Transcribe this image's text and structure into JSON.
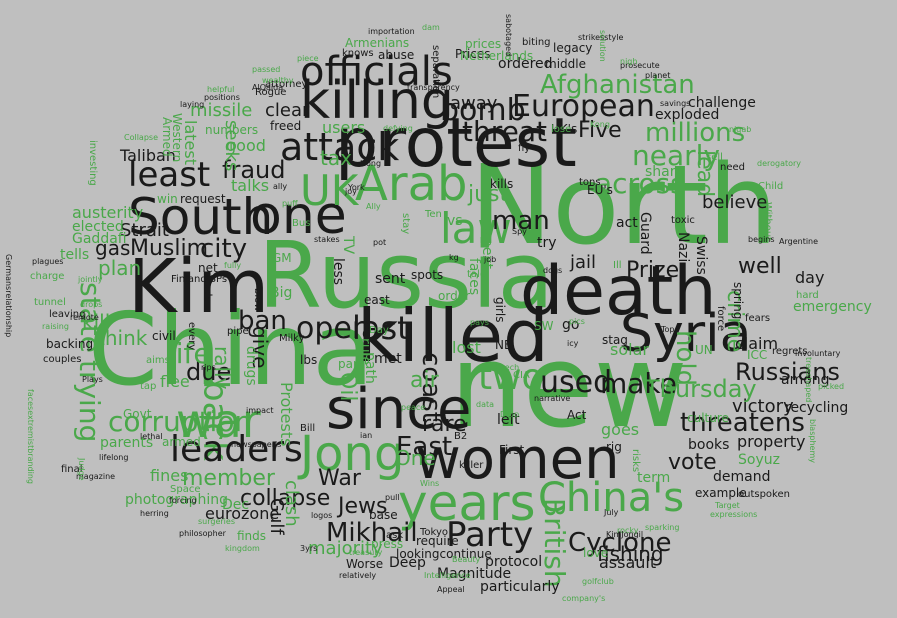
{
  "colors": {
    "background": "#bfbfbf",
    "dark": "#1a1a1a",
    "green": "#4aa84a"
  },
  "words": [
    {
      "text": "North",
      "color": "green"
    },
    {
      "text": "China",
      "color": "green"
    },
    {
      "text": "Russia",
      "color": "green"
    },
    {
      "text": "new",
      "color": "green"
    },
    {
      "text": "protest",
      "color": "dark"
    },
    {
      "text": "killed",
      "color": "dark"
    },
    {
      "text": "death",
      "color": "dark"
    },
    {
      "text": "Kim",
      "color": "dark"
    },
    {
      "text": "killing",
      "color": "dark"
    },
    {
      "text": "South",
      "color": "dark"
    },
    {
      "text": "women",
      "color": "dark"
    },
    {
      "text": "years",
      "color": "green"
    },
    {
      "text": "one",
      "color": "dark"
    },
    {
      "text": "since",
      "color": "dark"
    },
    {
      "text": "Syria",
      "color": "dark"
    },
    {
      "text": "officials",
      "color": "dark"
    },
    {
      "text": "war",
      "color": "green"
    },
    {
      "text": "Jong",
      "color": "green"
    },
    {
      "text": "UK",
      "color": "green"
    },
    {
      "text": "Arab",
      "color": "green"
    },
    {
      "text": "attack",
      "color": "dark"
    },
    {
      "text": "China's",
      "color": "green"
    },
    {
      "text": "bomb",
      "color": "dark"
    },
    {
      "text": "European",
      "color": "dark"
    },
    {
      "text": "least",
      "color": "dark"
    },
    {
      "text": "last",
      "color": "dark"
    },
    {
      "text": "law",
      "color": "green"
    },
    {
      "text": "two",
      "color": "green"
    },
    {
      "text": "back",
      "color": "green"
    },
    {
      "text": "leaders",
      "color": "dark"
    },
    {
      "text": "used",
      "color": "dark"
    },
    {
      "text": "make",
      "color": "dark"
    },
    {
      "text": "Party",
      "color": "dark"
    },
    {
      "text": "open",
      "color": "dark"
    },
    {
      "text": "corruption",
      "color": "green"
    },
    {
      "text": "Afghanistan",
      "color": "green"
    },
    {
      "text": "threat",
      "color": "dark"
    },
    {
      "text": "city",
      "color": "dark"
    },
    {
      "text": "nearly",
      "color": "green"
    },
    {
      "text": "Russians",
      "color": "dark"
    },
    {
      "text": "fraud",
      "color": "dark"
    },
    {
      "text": "threatens",
      "color": "dark"
    },
    {
      "text": "millions",
      "color": "green"
    },
    {
      "text": "across",
      "color": "green"
    },
    {
      "text": "state",
      "color": "green"
    },
    {
      "text": "Mikhail",
      "color": "dark"
    },
    {
      "text": "East",
      "color": "dark"
    },
    {
      "text": "Cyclone",
      "color": "dark"
    },
    {
      "text": "man",
      "color": "dark"
    },
    {
      "text": "Muslim",
      "color": "dark"
    },
    {
      "text": "Thursday",
      "color": "green"
    },
    {
      "text": "Prize",
      "color": "dark"
    },
    {
      "text": "victory",
      "color": "dark"
    },
    {
      "text": "vote",
      "color": "dark"
    },
    {
      "text": "member",
      "color": "green"
    },
    {
      "text": "collapse",
      "color": "dark"
    },
    {
      "text": "fishing",
      "color": "dark"
    },
    {
      "text": "British",
      "color": "green"
    },
    {
      "text": "trying",
      "color": "green"
    },
    {
      "text": "majority",
      "color": "green"
    },
    {
      "text": "coast",
      "color": "dark"
    },
    {
      "text": "ban",
      "color": "dark"
    },
    {
      "text": "due",
      "color": "dark"
    },
    {
      "text": "life",
      "color": "green"
    },
    {
      "text": "Five",
      "color": "dark"
    },
    {
      "text": "crime",
      "color": "green"
    },
    {
      "text": "hold",
      "color": "green"
    },
    {
      "text": "War",
      "color": "dark"
    },
    {
      "text": "Jews",
      "color": "dark"
    },
    {
      "text": "rare",
      "color": "dark"
    },
    {
      "text": "One",
      "color": "green"
    },
    {
      "text": "plan",
      "color": "green"
    },
    {
      "text": "kill",
      "color": "green"
    },
    {
      "text": "well",
      "color": "dark"
    },
    {
      "text": "lead",
      "color": "green"
    },
    {
      "text": "give",
      "color": "dark"
    },
    {
      "text": "gas",
      "color": "dark"
    },
    {
      "text": "tax",
      "color": "green"
    },
    {
      "text": "think",
      "color": "green"
    },
    {
      "text": "rally",
      "color": "green"
    },
    {
      "text": "just",
      "color": "green"
    },
    {
      "text": "air",
      "color": "green"
    },
    {
      "text": "Oil",
      "color": "green"
    },
    {
      "text": "users",
      "color": "green"
    },
    {
      "text": "missile",
      "color": "green"
    },
    {
      "text": "clear",
      "color": "dark"
    },
    {
      "text": "talks",
      "color": "green"
    },
    {
      "text": "Taliban",
      "color": "dark"
    },
    {
      "text": "away",
      "color": "dark"
    },
    {
      "text": "jail",
      "color": "dark"
    },
    {
      "text": "believe",
      "color": "dark"
    },
    {
      "text": "seeks",
      "color": "green"
    },
    {
      "text": "good",
      "color": "green"
    },
    {
      "text": "latest",
      "color": "green"
    },
    {
      "text": "demand",
      "color": "dark"
    },
    {
      "text": "property",
      "color": "dark"
    },
    {
      "text": "books",
      "color": "dark"
    },
    {
      "text": "fines",
      "color": "green"
    },
    {
      "text": "austerity",
      "color": "green"
    },
    {
      "text": "eurozone",
      "color": "dark"
    },
    {
      "text": "photographing",
      "color": "green"
    },
    {
      "text": "recycling",
      "color": "dark"
    },
    {
      "text": "among",
      "color": "dark"
    },
    {
      "text": "goes",
      "color": "green"
    },
    {
      "text": "solar",
      "color": "green"
    },
    {
      "text": "assault",
      "color": "dark"
    },
    {
      "text": "Gulf",
      "color": "dark"
    },
    {
      "text": "clash",
      "color": "green"
    },
    {
      "text": "Strait",
      "color": "dark"
    },
    {
      "text": "Protests",
      "color": "green"
    },
    {
      "text": "flee",
      "color": "green"
    },
    {
      "text": "Gaddafi",
      "color": "green"
    },
    {
      "text": "elected",
      "color": "green"
    },
    {
      "text": "parents",
      "color": "green"
    },
    {
      "text": "emergency",
      "color": "green"
    },
    {
      "text": "claim",
      "color": "dark"
    },
    {
      "text": "day",
      "color": "dark"
    },
    {
      "text": "lost",
      "color": "green"
    },
    {
      "text": "protocol",
      "color": "dark"
    },
    {
      "text": "particularly",
      "color": "dark"
    },
    {
      "text": "Magnitude",
      "color": "dark"
    },
    {
      "text": "lookingcontinue",
      "color": "dark"
    },
    {
      "text": "Deep",
      "color": "dark"
    },
    {
      "text": "Worse",
      "color": "dark"
    },
    {
      "text": "require",
      "color": "dark"
    },
    {
      "text": "culture",
      "color": "green"
    },
    {
      "text": "example",
      "color": "dark"
    },
    {
      "text": "term",
      "color": "green"
    },
    {
      "text": "Soyuz",
      "color": "green"
    },
    {
      "text": "outspoken",
      "color": "dark"
    },
    {
      "text": "challenge",
      "color": "dark"
    },
    {
      "text": "exploded",
      "color": "dark"
    },
    {
      "text": "share",
      "color": "green"
    },
    {
      "text": "legacy",
      "color": "dark"
    },
    {
      "text": "ordered",
      "color": "dark"
    },
    {
      "text": "middle",
      "color": "dark"
    },
    {
      "text": "Prices",
      "color": "dark"
    },
    {
      "text": "prices",
      "color": "green"
    },
    {
      "text": "Netherlands",
      "color": "green"
    },
    {
      "text": "Armenians",
      "color": "green"
    },
    {
      "text": "knows",
      "color": "dark"
    },
    {
      "text": "abuse",
      "color": "dark"
    },
    {
      "text": "biting",
      "color": "dark"
    },
    {
      "text": "separation",
      "color": "dark"
    },
    {
      "text": "importation",
      "color": "dark"
    },
    {
      "text": "strikesstyle",
      "color": "dark"
    },
    {
      "text": "prosecute",
      "color": "dark"
    },
    {
      "text": "planet",
      "color": "dark"
    },
    {
      "text": "savings",
      "color": "dark"
    },
    {
      "text": "transparency",
      "color": "dark"
    },
    {
      "text": "attorney",
      "color": "dark"
    },
    {
      "text": "AlQaida",
      "color": "dark"
    },
    {
      "text": "positions",
      "color": "dark"
    },
    {
      "text": "laying",
      "color": "dark"
    },
    {
      "text": "freed",
      "color": "dark"
    },
    {
      "text": "Rogue",
      "color": "dark"
    },
    {
      "text": "numbers",
      "color": "green"
    },
    {
      "text": "Dec",
      "color": "green"
    },
    {
      "text": "request",
      "color": "dark"
    },
    {
      "text": "win",
      "color": "green"
    },
    {
      "text": "ally",
      "color": "dark"
    },
    {
      "text": "plagues",
      "color": "dark"
    },
    {
      "text": "tells",
      "color": "green"
    },
    {
      "text": "charge",
      "color": "green"
    },
    {
      "text": "tunnel",
      "color": "green"
    },
    {
      "text": "raising",
      "color": "green"
    },
    {
      "text": "backing",
      "color": "dark"
    },
    {
      "text": "couples",
      "color": "dark"
    },
    {
      "text": "leaving",
      "color": "dark"
    },
    {
      "text": "remote",
      "color": "dark"
    },
    {
      "text": "final",
      "color": "dark"
    },
    {
      "text": "magazine",
      "color": "dark"
    },
    {
      "text": "lifelong",
      "color": "dark"
    },
    {
      "text": "herring",
      "color": "dark"
    },
    {
      "text": "philosopher",
      "color": "dark"
    },
    {
      "text": "kingdom",
      "color": "green"
    },
    {
      "text": "surgeries",
      "color": "green"
    },
    {
      "text": "finds",
      "color": "green"
    },
    {
      "text": "Space",
      "color": "green"
    },
    {
      "text": "armed",
      "color": "green"
    },
    {
      "text": "forcing",
      "color": "dark"
    },
    {
      "text": "newspaper's",
      "color": "dark"
    },
    {
      "text": "Bill",
      "color": "dark"
    },
    {
      "text": "lbs",
      "color": "dark"
    },
    {
      "text": "met",
      "color": "dark"
    },
    {
      "text": "Milky",
      "color": "dark"
    },
    {
      "text": "pipe",
      "color": "dark"
    },
    {
      "text": "civil",
      "color": "dark"
    },
    {
      "text": "net",
      "color": "dark"
    },
    {
      "text": "every",
      "color": "dark"
    },
    {
      "text": "leads",
      "color": "dark"
    },
    {
      "text": "blow",
      "color": "dark"
    },
    {
      "text": "drugs",
      "color": "green"
    },
    {
      "text": "Big",
      "color": "green"
    },
    {
      "text": "GM",
      "color": "green"
    },
    {
      "text": "TV",
      "color": "green"
    },
    {
      "text": "less",
      "color": "dark"
    },
    {
      "text": "sent",
      "color": "dark"
    },
    {
      "text": "east",
      "color": "dark"
    },
    {
      "text": "spots",
      "color": "dark"
    },
    {
      "text": "order",
      "color": "green"
    },
    {
      "text": "path",
      "color": "green"
    },
    {
      "text": "rule",
      "color": "green"
    },
    {
      "text": "park",
      "color": "green"
    },
    {
      "text": "try",
      "color": "dark"
    },
    {
      "text": "vs",
      "color": "green"
    },
    {
      "text": "faces",
      "color": "green"
    },
    {
      "text": "Guard",
      "color": "dark"
    },
    {
      "text": "act",
      "color": "dark"
    },
    {
      "text": "Nazi",
      "color": "dark"
    },
    {
      "text": "Swiss",
      "color": "dark"
    },
    {
      "text": "spring",
      "color": "dark"
    },
    {
      "text": "force",
      "color": "dark"
    },
    {
      "text": "regrets",
      "color": "dark"
    },
    {
      "text": "fears",
      "color": "dark"
    },
    {
      "text": "UN",
      "color": "green"
    },
    {
      "text": "ICC",
      "color": "green"
    },
    {
      "text": "hard",
      "color": "green"
    },
    {
      "text": "Child",
      "color": "green"
    },
    {
      "text": "need",
      "color": "dark"
    },
    {
      "text": "fly",
      "color": "dark"
    },
    {
      "text": "tons",
      "color": "dark"
    },
    {
      "text": "kills",
      "color": "dark"
    },
    {
      "text": "UK's",
      "color": "dark"
    },
    {
      "text": "lose",
      "color": "green"
    },
    {
      "text": "EU's",
      "color": "dark"
    },
    {
      "text": "next",
      "color": "green"
    },
    {
      "text": "go",
      "color": "dark"
    },
    {
      "text": "SW",
      "color": "green"
    },
    {
      "text": "girls",
      "color": "dark"
    },
    {
      "text": "NE",
      "color": "dark"
    },
    {
      "text": "First",
      "color": "dark"
    },
    {
      "text": "left",
      "color": "dark"
    },
    {
      "text": "Act",
      "color": "dark"
    },
    {
      "text": "killer",
      "color": "dark"
    },
    {
      "text": "B2",
      "color": "dark"
    },
    {
      "text": "ask",
      "color": "dark"
    },
    {
      "text": "base",
      "color": "dark"
    },
    {
      "text": "pull",
      "color": "dark"
    },
    {
      "text": "Tokyo",
      "color": "dark"
    },
    {
      "text": "rig",
      "color": "dark"
    },
    {
      "text": "July",
      "color": "dark"
    },
    {
      "text": "risks",
      "color": "green"
    },
    {
      "text": "love",
      "color": "green"
    },
    {
      "text": "Target",
      "color": "green"
    },
    {
      "text": "expressions",
      "color": "green"
    },
    {
      "text": "Appeal",
      "color": "dark"
    },
    {
      "text": "relatively",
      "color": "dark"
    },
    {
      "text": "Intelligence",
      "color": "green"
    },
    {
      "text": "Beauty",
      "color": "green"
    },
    {
      "text": "golfclub",
      "color": "green"
    },
    {
      "text": "company's",
      "color": "green"
    },
    {
      "text": "treasury",
      "color": "green"
    },
    {
      "text": "press",
      "color": "green"
    },
    {
      "text": "Govt",
      "color": "green"
    },
    {
      "text": "Plays",
      "color": "dark"
    },
    {
      "text": "Judge",
      "color": "green"
    },
    {
      "text": "Armed",
      "color": "green"
    },
    {
      "text": "Western",
      "color": "green"
    },
    {
      "text": "investing",
      "color": "green"
    },
    {
      "text": "Collapse",
      "color": "green"
    },
    {
      "text": "helpful",
      "color": "green"
    },
    {
      "text": "passed",
      "color": "green"
    },
    {
      "text": "wealthy",
      "color": "green"
    },
    {
      "text": "piece",
      "color": "green"
    },
    {
      "text": "Germansrelationship",
      "color": "dark"
    },
    {
      "text": "facesextremistbranding",
      "color": "green"
    },
    {
      "text": "jointly",
      "color": "green"
    },
    {
      "text": "drops",
      "color": "green"
    },
    {
      "text": "FinlandISPs",
      "color": "dark"
    },
    {
      "text": "fully",
      "color": "green"
    },
    {
      "text": "Hong",
      "color": "dark"
    },
    {
      "text": "York",
      "color": "dark"
    },
    {
      "text": "joy",
      "color": "dark"
    },
    {
      "text": "Ally",
      "color": "green"
    },
    {
      "text": "Ten",
      "color": "green"
    },
    {
      "text": "stay",
      "color": "green"
    },
    {
      "text": "pot",
      "color": "dark"
    },
    {
      "text": "kg",
      "color": "dark"
    },
    {
      "text": "tale",
      "color": "green"
    },
    {
      "text": "job",
      "color": "dark"
    },
    {
      "text": "Spy",
      "color": "dark"
    },
    {
      "text": "dogs",
      "color": "dark"
    },
    {
      "text": "pics",
      "color": "green"
    },
    {
      "text": "icy",
      "color": "dark"
    },
    {
      "text": "stag",
      "color": "dark"
    },
    {
      "text": "Top",
      "color": "dark"
    },
    {
      "text": "toxic",
      "color": "dark"
    },
    {
      "text": "Argentine",
      "color": "dark"
    },
    {
      "text": "involuntary",
      "color": "dark"
    },
    {
      "text": "treeshaped",
      "color": "green"
    },
    {
      "text": "picked",
      "color": "green"
    },
    {
      "text": "blasphemy",
      "color": "green"
    },
    {
      "text": "derogatory",
      "color": "green"
    },
    {
      "text": "Without",
      "color": "green"
    },
    {
      "text": "sparking",
      "color": "green"
    },
    {
      "text": "rocky",
      "color": "green"
    },
    {
      "text": "KimJongil",
      "color": "dark"
    },
    {
      "text": "Drop",
      "color": "green"
    },
    {
      "text": "data",
      "color": "green"
    },
    {
      "text": "CIA",
      "color": "green"
    },
    {
      "text": "Czech",
      "color": "green"
    },
    {
      "text": "pays",
      "color": "green"
    },
    {
      "text": "narrative",
      "color": "dark"
    },
    {
      "text": "lethal",
      "color": "dark"
    },
    {
      "text": "logos",
      "color": "dark"
    },
    {
      "text": "rips",
      "color": "dark"
    },
    {
      "text": "impact",
      "color": "dark"
    },
    {
      "text": "puff",
      "color": "green"
    },
    {
      "text": "defying",
      "color": "green"
    },
    {
      "text": "Kong",
      "color": "green"
    },
    {
      "text": "niqab",
      "color": "green"
    },
    {
      "text": "begins",
      "color": "dark"
    },
    {
      "text": "solution",
      "color": "green"
    },
    {
      "text": "nigh",
      "color": "green"
    },
    {
      "text": "dam",
      "color": "green"
    },
    {
      "text": "sabotaged",
      "color": "dark"
    },
    {
      "text": "Bus",
      "color": "green"
    },
    {
      "text": "Day",
      "color": "green"
    },
    {
      "text": "peace",
      "color": "green"
    },
    {
      "text": "3yrs",
      "color": "dark"
    },
    {
      "text": "stakes",
      "color": "dark"
    },
    {
      "text": "Wins",
      "color": "green"
    },
    {
      "text": "Ill",
      "color": "green"
    },
    {
      "text": "ian",
      "color": "dark"
    },
    {
      "text": "aims",
      "color": "green"
    },
    {
      "text": "tap",
      "color": "green"
    },
    {
      "text": "sell",
      "color": "green"
    }
  ]
}
